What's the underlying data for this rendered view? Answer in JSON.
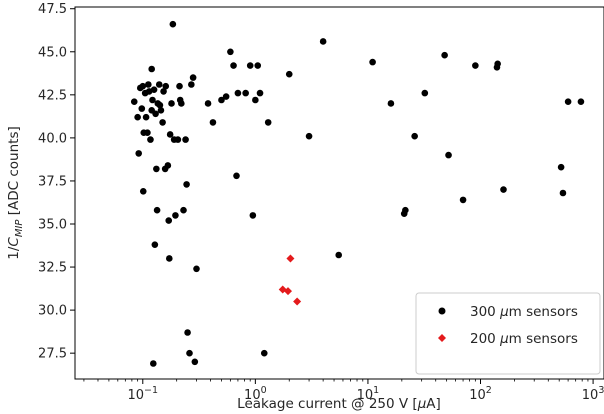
{
  "chart_data": {
    "type": "scatter",
    "xlabel_main": "Leakage current @ 250 V [",
    "xlabel_unit_greek": "μ",
    "xlabel_unit_rest": "A]",
    "ylabel_main": "1/",
    "ylabel_var": "C",
    "ylabel_sub": "MIP",
    "ylabel_rest": " [ADC counts]",
    "x_scale": "log",
    "xlim": [
      0.025,
      1250
    ],
    "ylim": [
      26.0,
      47.6
    ],
    "x_ticks": [
      {
        "value": 0.1,
        "base": "10",
        "exp": "−1"
      },
      {
        "value": 1,
        "base": "10",
        "exp": "0"
      },
      {
        "value": 10,
        "base": "10",
        "exp": "1"
      },
      {
        "value": 100,
        "base": "10",
        "exp": "2"
      },
      {
        "value": 1000,
        "base": "10",
        "exp": "3"
      }
    ],
    "y_ticks": [
      {
        "value": 27.5,
        "label": "27.5"
      },
      {
        "value": 30.0,
        "label": "30.0"
      },
      {
        "value": 32.5,
        "label": "32.5"
      },
      {
        "value": 35.0,
        "label": "35.0"
      },
      {
        "value": 37.5,
        "label": "37.5"
      },
      {
        "value": 40.0,
        "label": "40.0"
      },
      {
        "value": 42.5,
        "label": "42.5"
      },
      {
        "value": 45.0,
        "label": "45.0"
      },
      {
        "value": 47.5,
        "label": "47.5"
      }
    ],
    "grid": false,
    "legend_position": "lower-right",
    "series": [
      {
        "name_prefix": "300 ",
        "name_greek": "μ",
        "name_suffix": "m sensors",
        "marker": "circle",
        "color": "#000000",
        "points": [
          [
            0.084,
            42.1
          ],
          [
            0.09,
            41.2
          ],
          [
            0.092,
            39.1
          ],
          [
            0.095,
            42.9
          ],
          [
            0.098,
            41.7
          ],
          [
            0.1,
            43.0
          ],
          [
            0.101,
            36.9
          ],
          [
            0.102,
            40.3
          ],
          [
            0.105,
            42.6
          ],
          [
            0.107,
            41.2
          ],
          [
            0.11,
            40.3
          ],
          [
            0.112,
            43.1
          ],
          [
            0.114,
            42.7
          ],
          [
            0.117,
            39.9
          ],
          [
            0.12,
            44.0
          ],
          [
            0.12,
            41.6
          ],
          [
            0.122,
            42.2
          ],
          [
            0.124,
            26.9
          ],
          [
            0.126,
            42.8
          ],
          [
            0.128,
            33.8
          ],
          [
            0.13,
            41.4
          ],
          [
            0.132,
            38.2
          ],
          [
            0.134,
            35.8
          ],
          [
            0.136,
            42.0
          ],
          [
            0.14,
            43.1
          ],
          [
            0.142,
            41.9
          ],
          [
            0.145,
            41.6
          ],
          [
            0.15,
            40.9
          ],
          [
            0.153,
            42.7
          ],
          [
            0.158,
            38.2
          ],
          [
            0.16,
            43.0
          ],
          [
            0.167,
            38.4
          ],
          [
            0.17,
            35.2
          ],
          [
            0.172,
            33.0
          ],
          [
            0.175,
            40.2
          ],
          [
            0.18,
            42.0
          ],
          [
            0.185,
            46.6
          ],
          [
            0.19,
            39.9
          ],
          [
            0.195,
            35.5
          ],
          [
            0.205,
            39.9
          ],
          [
            0.212,
            43.0
          ],
          [
            0.215,
            42.2
          ],
          [
            0.22,
            42.0
          ],
          [
            0.23,
            35.8
          ],
          [
            0.24,
            39.9
          ],
          [
            0.245,
            37.3
          ],
          [
            0.25,
            28.7
          ],
          [
            0.26,
            27.5
          ],
          [
            0.27,
            43.1
          ],
          [
            0.28,
            43.5
          ],
          [
            0.29,
            27.0
          ],
          [
            0.3,
            32.4
          ],
          [
            0.38,
            42.0
          ],
          [
            0.42,
            40.9
          ],
          [
            0.5,
            42.2
          ],
          [
            0.55,
            42.4
          ],
          [
            0.6,
            45.0
          ],
          [
            0.64,
            44.2
          ],
          [
            0.68,
            37.8
          ],
          [
            0.7,
            42.6
          ],
          [
            0.82,
            42.6
          ],
          [
            0.9,
            44.2
          ],
          [
            0.95,
            35.5
          ],
          [
            1.0,
            42.2
          ],
          [
            1.05,
            44.2
          ],
          [
            1.1,
            42.6
          ],
          [
            1.2,
            27.5
          ],
          [
            1.3,
            40.9
          ],
          [
            2.0,
            43.7
          ],
          [
            3.0,
            40.1
          ],
          [
            4.0,
            45.6
          ],
          [
            5.5,
            33.2
          ],
          [
            11.0,
            44.4
          ],
          [
            16.0,
            42.0
          ],
          [
            21.0,
            35.6
          ],
          [
            21.5,
            35.8
          ],
          [
            26.0,
            40.1
          ],
          [
            32.0,
            42.6
          ],
          [
            48.0,
            44.8
          ],
          [
            52.0,
            39.0
          ],
          [
            70.0,
            36.4
          ],
          [
            90.0,
            44.2
          ],
          [
            140.0,
            44.1
          ],
          [
            142.0,
            44.3
          ],
          [
            160.0,
            37.0
          ],
          [
            520.0,
            38.3
          ],
          [
            540.0,
            36.8
          ],
          [
            600.0,
            42.1
          ],
          [
            780.0,
            42.1
          ]
        ]
      },
      {
        "name_prefix": "200 ",
        "name_greek": "μ",
        "name_suffix": "m sensors",
        "marker": "diamond",
        "color": "#e41a1c",
        "points": [
          [
            1.75,
            31.2
          ],
          [
            1.95,
            31.1
          ],
          [
            2.05,
            33.0
          ],
          [
            2.35,
            30.5
          ]
        ]
      }
    ]
  }
}
